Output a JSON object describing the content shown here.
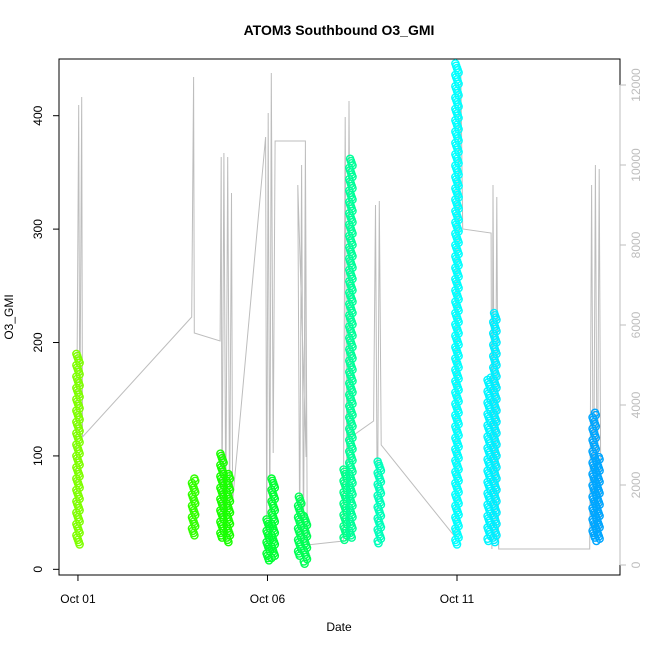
{
  "chart_data": {
    "type": "scatter",
    "title": "ATOM3 Southbound O3_GMI",
    "xlabel": "Date",
    "ylabel": "O3_GMI",
    "x_ticks": [
      {
        "value": 0,
        "label": "Oct 01"
      },
      {
        "value": 5,
        "label": "Oct 06"
      },
      {
        "value": 10,
        "label": "Oct 11"
      }
    ],
    "xlim": [
      -0.5,
      14.3
    ],
    "ylim": [
      -5,
      450
    ],
    "y_ticks": [
      0,
      100,
      200,
      300,
      400
    ],
    "y2_ticks": [
      0,
      2000,
      4000,
      6000,
      8000,
      10000,
      12000
    ],
    "y2lim": [
      -250,
      12650
    ],
    "y2_color": "#bdbdbd",
    "grid": false,
    "altitude_trace_color": "#bdbdbd",
    "series": [
      {
        "x": 0.0,
        "ymin": 22,
        "ymax": 190,
        "color": "#7fff00"
      },
      {
        "x": 3.05,
        "ymin": 30,
        "ymax": 81,
        "color": "#33ff00"
      },
      {
        "x": 3.8,
        "ymin": 28,
        "ymax": 103,
        "color": "#19ff00"
      },
      {
        "x": 3.97,
        "ymin": 24,
        "ymax": 85,
        "color": "#19ff00"
      },
      {
        "x": 5.02,
        "ymin": 8,
        "ymax": 45,
        "color": "#00ff33"
      },
      {
        "x": 5.15,
        "ymin": 10,
        "ymax": 80,
        "color": "#00ff33"
      },
      {
        "x": 5.85,
        "ymin": 12,
        "ymax": 65,
        "color": "#00ff55"
      },
      {
        "x": 6.0,
        "ymin": 5,
        "ymax": 47,
        "color": "#00ff55"
      },
      {
        "x": 7.05,
        "ymin": 26,
        "ymax": 88,
        "color": "#00ff88"
      },
      {
        "x": 7.2,
        "ymin": 28,
        "ymax": 362,
        "color": "#00ff99"
      },
      {
        "x": 7.95,
        "ymin": 23,
        "ymax": 95,
        "color": "#00ffbb"
      },
      {
        "x": 10.0,
        "ymin": 22,
        "ymax": 447,
        "color": "#00ffff"
      },
      {
        "x": 10.85,
        "ymin": 25,
        "ymax": 170,
        "color": "#00f5ff"
      },
      {
        "x": 11.0,
        "ymin": 24,
        "ymax": 226,
        "color": "#00eeff"
      },
      {
        "x": 13.62,
        "ymin": 28,
        "ymax": 138,
        "color": "#00a6ff"
      },
      {
        "x": 13.72,
        "ymin": 25,
        "ymax": 100,
        "color": "#00a6ff"
      }
    ],
    "altitude": [
      {
        "x": -0.05,
        "v": 1000
      },
      {
        "x": 0.02,
        "v": 11500
      },
      {
        "x": 0.05,
        "v": 3200
      },
      {
        "x": 0.1,
        "v": 11700
      },
      {
        "x": 0.12,
        "v": 3200
      },
      {
        "x": 3.0,
        "v": 6200
      },
      {
        "x": 3.05,
        "v": 12200
      },
      {
        "x": 3.07,
        "v": 5800
      },
      {
        "x": 3.75,
        "v": 5600
      },
      {
        "x": 3.78,
        "v": 10200
      },
      {
        "x": 3.8,
        "v": 1200
      },
      {
        "x": 3.85,
        "v": 10300
      },
      {
        "x": 3.9,
        "v": 1300
      },
      {
        "x": 3.95,
        "v": 10200
      },
      {
        "x": 4.0,
        "v": 1400
      },
      {
        "x": 4.05,
        "v": 9300
      },
      {
        "x": 4.08,
        "v": 1600
      },
      {
        "x": 4.95,
        "v": 10700
      },
      {
        "x": 4.98,
        "v": 400
      },
      {
        "x": 5.02,
        "v": 11300
      },
      {
        "x": 5.06,
        "v": 600
      },
      {
        "x": 5.1,
        "v": 12300
      },
      {
        "x": 5.15,
        "v": 2800
      },
      {
        "x": 5.2,
        "v": 10600
      },
      {
        "x": 6.0,
        "v": 10600
      },
      {
        "x": 6.02,
        "v": 2700
      },
      {
        "x": 5.8,
        "v": 9500
      },
      {
        "x": 5.85,
        "v": 700
      },
      {
        "x": 5.9,
        "v": 10000
      },
      {
        "x": 5.95,
        "v": 400
      },
      {
        "x": 6.0,
        "v": 10500
      },
      {
        "x": 6.05,
        "v": 500
      },
      {
        "x": 7.0,
        "v": 600
      },
      {
        "x": 7.05,
        "v": 11200
      },
      {
        "x": 7.1,
        "v": 600
      },
      {
        "x": 7.15,
        "v": 11600
      },
      {
        "x": 7.2,
        "v": 3200
      },
      {
        "x": 7.8,
        "v": 3600
      },
      {
        "x": 7.85,
        "v": 9000
      },
      {
        "x": 7.9,
        "v": 700
      },
      {
        "x": 7.95,
        "v": 9100
      },
      {
        "x": 8.0,
        "v": 3000
      },
      {
        "x": 9.95,
        "v": 700
      },
      {
        "x": 9.98,
        "v": 9700
      },
      {
        "x": 10.0,
        "v": 700
      },
      {
        "x": 10.03,
        "v": 12000
      },
      {
        "x": 10.06,
        "v": 8000
      },
      {
        "x": 10.1,
        "v": 12300
      },
      {
        "x": 10.15,
        "v": 8400
      },
      {
        "x": 10.9,
        "v": 8300
      },
      {
        "x": 10.92,
        "v": 400
      },
      {
        "x": 10.95,
        "v": 9500
      },
      {
        "x": 11.0,
        "v": 600
      },
      {
        "x": 11.05,
        "v": 9200
      },
      {
        "x": 11.1,
        "v": 400
      },
      {
        "x": 13.5,
        "v": 400
      },
      {
        "x": 13.55,
        "v": 9500
      },
      {
        "x": 13.6,
        "v": 700
      },
      {
        "x": 13.65,
        "v": 10000
      },
      {
        "x": 13.7,
        "v": 800
      },
      {
        "x": 13.75,
        "v": 9900
      },
      {
        "x": 13.8,
        "v": 700
      }
    ]
  }
}
